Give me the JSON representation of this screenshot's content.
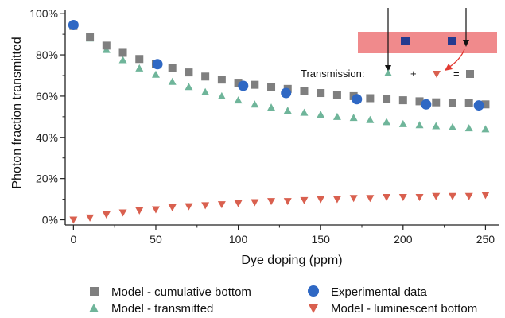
{
  "chart_data": {
    "type": "scatter",
    "xlabel": "Dye doping (ppm)",
    "ylabel": "Photon fraction transmitted",
    "xlim": [
      -5,
      258
    ],
    "ylim": [
      -2.5,
      102
    ],
    "xticks": [
      0,
      50,
      100,
      150,
      200,
      250
    ],
    "yticks": [
      0,
      20,
      40,
      60,
      80,
      100
    ],
    "ytick_labels": [
      "0%",
      "20%",
      "40%",
      "60%",
      "80%",
      "100%"
    ],
    "grid": false,
    "legend_position": "bottom",
    "series": [
      {
        "name": "Model - cumulative bottom",
        "marker": "square",
        "color": "#7f7f7f",
        "x": [
          0,
          10,
          20,
          30,
          40,
          50,
          60,
          70,
          80,
          90,
          100,
          110,
          120,
          130,
          140,
          150,
          160,
          170,
          180,
          190,
          200,
          210,
          220,
          230,
          240,
          250
        ],
        "y": [
          94,
          88.5,
          84.5,
          81,
          78,
          75.5,
          73.5,
          71.5,
          69.5,
          68,
          66.5,
          65.5,
          64.5,
          63.5,
          62.5,
          61.5,
          60.5,
          60,
          59,
          58.5,
          58,
          57.5,
          57,
          56.5,
          56.5,
          56
        ]
      },
      {
        "name": "Model - transmitted",
        "marker": "triangle-up",
        "color": "#6fb59a",
        "x": [
          0,
          10,
          20,
          30,
          40,
          50,
          60,
          70,
          80,
          90,
          100,
          110,
          120,
          130,
          140,
          150,
          160,
          170,
          180,
          190,
          200,
          210,
          220,
          230,
          240,
          250
        ],
        "y": [
          94,
          88,
          82.5,
          77.5,
          73.5,
          70.5,
          67,
          64.5,
          62,
          60,
          58,
          56,
          54.5,
          53,
          52,
          51,
          50,
          49.5,
          48.5,
          47.5,
          46.5,
          46,
          45.5,
          45,
          44.5,
          44
        ]
      },
      {
        "name": "Experimental data",
        "marker": "circle",
        "color": "#2f68c4",
        "x": [
          0,
          51,
          103,
          129,
          172,
          214,
          246
        ],
        "y": [
          94.5,
          75.5,
          65,
          61.5,
          58.5,
          56,
          55.5
        ]
      },
      {
        "name": "Model - luminescent bottom",
        "marker": "triangle-down",
        "color": "#d9604f",
        "x": [
          0,
          10,
          20,
          30,
          40,
          50,
          60,
          70,
          80,
          90,
          100,
          110,
          120,
          130,
          140,
          150,
          160,
          170,
          180,
          190,
          200,
          210,
          220,
          230,
          240,
          250
        ],
        "y": [
          0,
          1,
          2.5,
          3.5,
          4.5,
          5,
          6,
          6.5,
          7,
          7.5,
          8,
          8.5,
          9,
          9,
          9.5,
          10,
          10,
          10.5,
          10.5,
          11,
          11,
          11,
          11.5,
          11.5,
          11.5,
          12
        ]
      }
    ]
  },
  "inset": {
    "transmission_label": "Transmission:",
    "plus_symbol": "+",
    "equals_symbol": "=",
    "slab_color": "#f08a8c",
    "dye_color": "#253a8f",
    "arrow_color": "#e23a32"
  }
}
